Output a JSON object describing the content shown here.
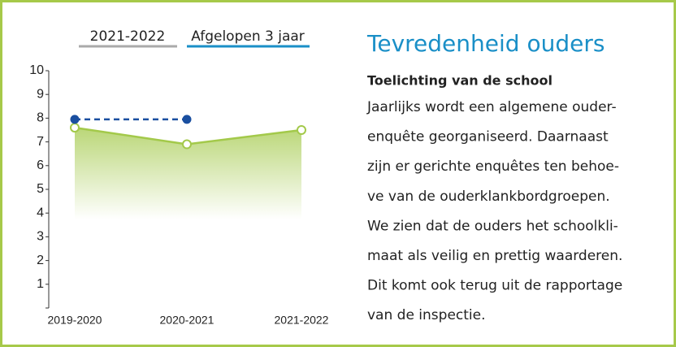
{
  "tabs": [
    "2021-2022",
    "Afgelopen 3 jaar"
  ],
  "chart_data": {
    "type": "line",
    "categories": [
      "2019-2020",
      "2020-2021",
      "2021-2022"
    ],
    "series": [
      {
        "color": "#a3c94a",
        "values": [
          7.6,
          6.9,
          7.5
        ],
        "style": "solid",
        "area": true
      },
      {
        "color": "#1a4fa0",
        "values": [
          7.95,
          7.95,
          null
        ],
        "style": "dashed"
      }
    ],
    "ylim": [
      0,
      10
    ],
    "yticks": [
      1,
      2,
      3,
      4,
      5,
      6,
      7,
      8,
      9,
      10
    ]
  },
  "panel": {
    "title": "Tevredenheid ouders",
    "subtitle": "Toelichting van de school",
    "body": [
      "Jaarlijks wordt een algemene ouder-",
      "enquête georganiseerd. Daarnaast",
      "zijn er gerichte enquêtes ten behoe-",
      "ve van de ouderklankbordgroepen.",
      "We zien dat de ouders het schoolkli-",
      "maat als veilig en prettig waarderen.",
      "Dit komt ook terug uit de rapportage",
      "van de inspectie."
    ]
  }
}
